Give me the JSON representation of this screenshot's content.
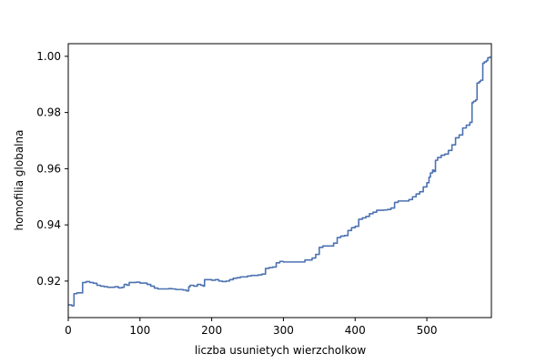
{
  "chart_data": {
    "type": "line",
    "title": "",
    "xlabel": "liczba usunietych wierzcholkow",
    "ylabel": "homofilia globalna",
    "xlim": [
      0,
      590
    ],
    "ylim": [
      0.907,
      1.0045
    ],
    "xticks": [
      0,
      100,
      200,
      300,
      400,
      500
    ],
    "yticks": [
      0.92,
      0.94,
      0.96,
      0.98,
      1.0
    ],
    "ytick_labels": [
      "0.92",
      "0.94",
      "0.96",
      "0.98",
      "1.00"
    ],
    "grid": false,
    "line_color": "#4c72b0",
    "series": [
      {
        "x": [
          0,
          5,
          8,
          12,
          16,
          20,
          25,
          30,
          35,
          40,
          45,
          50,
          55,
          60,
          65,
          70,
          75,
          78,
          82,
          85,
          90,
          95,
          100,
          105,
          110,
          115,
          120,
          125,
          130,
          135,
          140,
          145,
          150,
          155,
          160,
          165,
          168,
          170,
          175,
          180,
          185,
          188,
          190,
          195,
          200,
          205,
          210,
          215,
          220,
          225,
          230,
          235,
          240,
          245,
          250,
          255,
          260,
          265,
          270,
          275,
          280,
          285,
          290,
          295,
          300,
          310,
          320,
          330,
          340,
          345,
          350,
          355,
          360,
          365,
          370,
          375,
          380,
          385,
          390,
          395,
          400,
          405,
          410,
          415,
          420,
          425,
          430,
          435,
          440,
          445,
          450,
          455,
          460,
          465,
          470,
          475,
          480,
          485,
          490,
          495,
          500,
          503,
          505,
          508,
          510,
          512,
          515,
          520,
          525,
          530,
          535,
          540,
          545,
          550,
          555,
          560,
          563,
          565,
          568,
          570,
          573,
          575,
          578,
          580,
          583,
          585,
          588
        ],
        "y": [
          0.9115,
          0.9112,
          0.9155,
          0.9158,
          0.9158,
          0.9195,
          0.9198,
          0.9195,
          0.9192,
          0.9185,
          0.9182,
          0.918,
          0.9178,
          0.9178,
          0.918,
          0.9176,
          0.9178,
          0.9188,
          0.9185,
          0.9195,
          0.9195,
          0.9196,
          0.9193,
          0.9193,
          0.9188,
          0.9182,
          0.9175,
          0.9172,
          0.9172,
          0.9172,
          0.9173,
          0.9172,
          0.917,
          0.917,
          0.9168,
          0.9165,
          0.918,
          0.9185,
          0.9182,
          0.9188,
          0.9185,
          0.9182,
          0.9205,
          0.9205,
          0.9203,
          0.9205,
          0.92,
          0.9198,
          0.92,
          0.9205,
          0.921,
          0.9212,
          0.9215,
          0.9215,
          0.9218,
          0.922,
          0.922,
          0.9222,
          0.9225,
          0.9245,
          0.9248,
          0.925,
          0.9265,
          0.927,
          0.9268,
          0.9268,
          0.9268,
          0.9275,
          0.9282,
          0.9295,
          0.932,
          0.9325,
          0.9325,
          0.9325,
          0.9335,
          0.9355,
          0.936,
          0.9362,
          0.938,
          0.939,
          0.9395,
          0.942,
          0.9425,
          0.943,
          0.944,
          0.9445,
          0.9452,
          0.9452,
          0.9453,
          0.9455,
          0.946,
          0.948,
          0.9485,
          0.9485,
          0.9485,
          0.949,
          0.95,
          0.951,
          0.9518,
          0.9535,
          0.955,
          0.957,
          0.9585,
          0.9595,
          0.959,
          0.963,
          0.964,
          0.9648,
          0.9652,
          0.9665,
          0.9685,
          0.971,
          0.972,
          0.9745,
          0.9755,
          0.9765,
          0.9835,
          0.984,
          0.9845,
          0.9905,
          0.991,
          0.9915,
          0.9975,
          0.998,
          0.9985,
          0.9995,
          1.0
        ]
      }
    ]
  }
}
